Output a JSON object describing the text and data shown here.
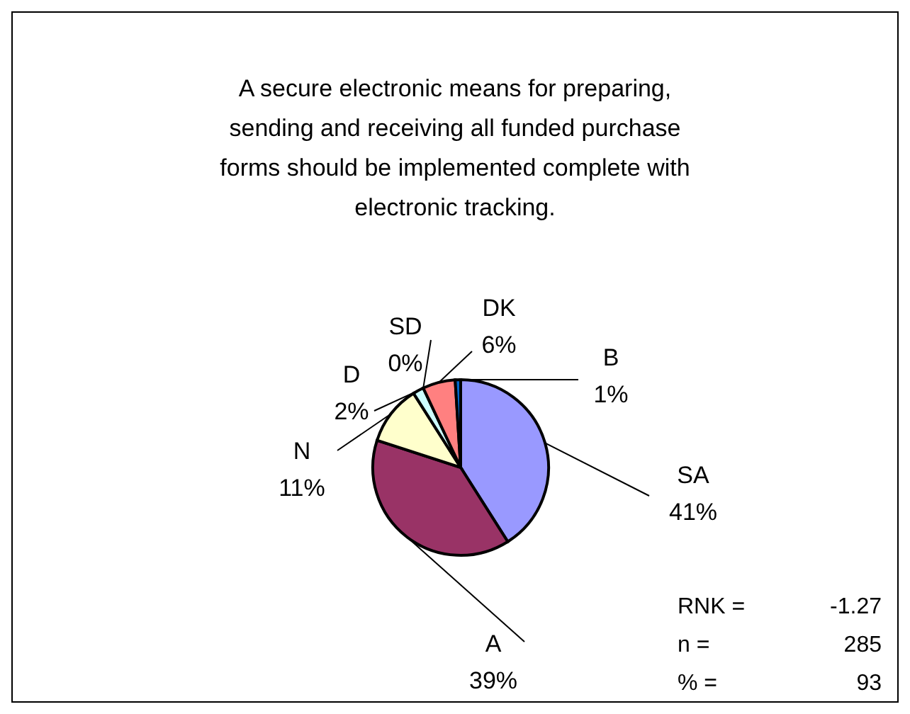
{
  "chart_data": {
    "type": "pie",
    "title": "A secure electronic means for preparing, sending and receiving all funded purchase forms should be implemented complete with electronic tracking.",
    "categories": [
      "SA",
      "A",
      "N",
      "D",
      "SD",
      "DK",
      "B"
    ],
    "values": [
      41,
      39,
      11,
      2,
      0,
      6,
      1
    ],
    "colors": [
      "#9999ff",
      "#993366",
      "#ffffcc",
      "#ccffff",
      "#ffffff",
      "#ff8080",
      "#0066cc"
    ],
    "value_labels": [
      "41%",
      "39%",
      "11%",
      "2%",
      "0%",
      "6%",
      "1%"
    ],
    "annotations": [
      "RNK = -1.27",
      "n = 285",
      "% = 93"
    ]
  }
}
